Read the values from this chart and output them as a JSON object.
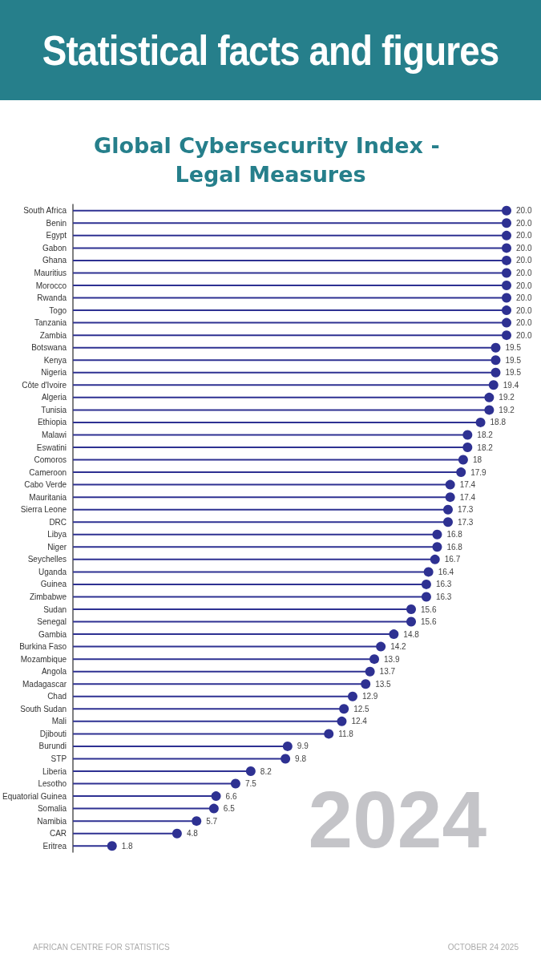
{
  "chart_data": {
    "type": "lollipop",
    "title": "Global Cybersecurity Index - Legal Measures",
    "orientation": "horizontal",
    "color": "#2e3192",
    "marker": "circle",
    "xlim": [
      0,
      20
    ],
    "tick_labels": "y",
    "categories": [
      "South Africa",
      "Benin",
      "Egypt",
      "Gabon",
      "Ghana",
      "Mauritius",
      "Morocco",
      "Rwanda",
      "Togo",
      "Tanzania",
      "Zambia",
      "Botswana",
      "Kenya",
      "Nigeria",
      "Côte d'Ivoire",
      "Algeria",
      "Tunisia",
      "Ethiopia",
      "Malawi",
      "Eswatini",
      "Comoros",
      "Cameroon",
      "Cabo Verde",
      "Mauritania",
      "Sierra Leone",
      "DRC",
      "Libya",
      "Niger",
      "Seychelles",
      "Uganda",
      "Guinea",
      "Zimbabwe",
      "Sudan",
      "Senegal",
      "Gambia",
      "Burkina Faso",
      "Mozambique",
      "Angola",
      "Madagascar",
      "Chad",
      "South Sudan",
      "Mali",
      "Djibouti",
      "Burundi",
      "STP",
      "Liberia",
      "Lesotho",
      "Equatorial Guinea",
      "Somalia",
      "Namibia",
      "CAR",
      "Eritrea"
    ],
    "values": [
      20,
      20,
      20,
      20,
      20,
      20,
      20,
      20,
      20,
      20,
      20,
      19.5,
      19.5,
      19.5,
      19.4,
      19.2,
      19.2,
      18.8,
      18.2,
      18.2,
      18,
      17.9,
      17.4,
      17.4,
      17.3,
      17.3,
      16.8,
      16.8,
      16.7,
      16.4,
      16.3,
      16.3,
      15.6,
      15.6,
      14.8,
      14.2,
      13.9,
      13.7,
      13.5,
      12.9,
      12.5,
      12.4,
      11.8,
      9.9,
      9.8,
      8.2,
      7.5,
      6.6,
      6.5,
      5.7,
      4.8,
      1.8
    ],
    "value_labels": [
      "20.0",
      "20.0",
      "20.0",
      "20.0",
      "20.0",
      "20.0",
      "20.0",
      "20.0",
      "20.0",
      "20.0",
      "20.0",
      "19.5",
      "19.5",
      "19.5",
      "19.4",
      "19.2",
      "19.2",
      "18.8",
      "18.2",
      "18.2",
      "18",
      "17.9",
      "17.4",
      "17.4",
      "17.3",
      "17.3",
      "16.8",
      "16.8",
      "16.7",
      "16.4",
      "16.3",
      "16.3",
      "15.6",
      "15.6",
      "14.8",
      "14.2",
      "13.9",
      "13.7",
      "13.5",
      "12.9",
      "12.5",
      "12.4",
      "11.8",
      "9.9",
      "9.8",
      "8.2",
      "7.5",
      "6.6",
      "6.5",
      "5.7",
      "4.8",
      "1.8"
    ],
    "annotations": [
      "Statistical facts and figures",
      "2024",
      "AFRICAN CENTRE FOR STATISTICS",
      "OCTOBER 24 2025"
    ]
  }
}
